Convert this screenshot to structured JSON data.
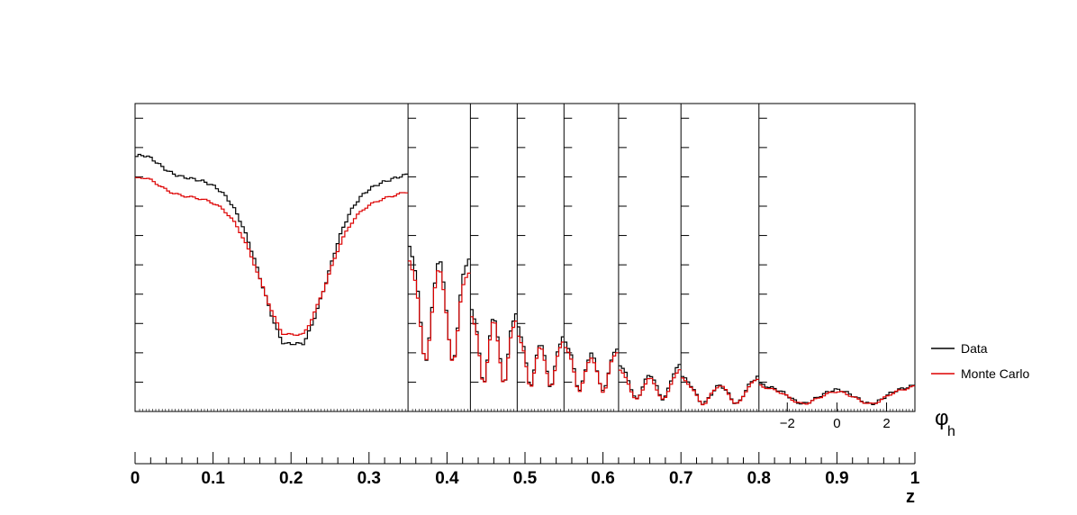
{
  "chart_data": {
    "type": "line",
    "xlabel": "z",
    "inner_xlabel": "φ",
    "inner_xlabel_sub": "h",
    "x_range": [
      0,
      1
    ],
    "x_ticks": [
      "0",
      "0.1",
      "0.2",
      "0.3",
      "0.4",
      "0.5",
      "0.6",
      "0.7",
      "0.8",
      "0.9",
      "1"
    ],
    "phi_range": [
      -3.1416,
      3.1416
    ],
    "phi_ticks": [
      "−2",
      "0",
      "2"
    ],
    "y_range": [
      0,
      1
    ],
    "bin_edges": [
      0,
      0.35,
      0.43,
      0.49,
      0.55,
      0.62,
      0.7,
      0.8,
      1.0
    ],
    "legend": {
      "placement": "right",
      "entries": [
        {
          "label": "Data",
          "color": "#000000"
        },
        {
          "label": "Monte Carlo",
          "color": "#dd0000"
        }
      ]
    },
    "series": [
      {
        "name": "Data",
        "color": "#000000",
        "panels": [
          {
            "left": 0.86,
            "min": 0.22,
            "right": 0.82,
            "mid": 0.68,
            "dip": 0.49,
            "mid_y": 0.66,
            "peak1": 0.92,
            "peak1_x": 0.03
          },
          {
            "left": 0.55,
            "min": 0.1,
            "right": 0.51,
            "mid": 0.42
          },
          {
            "left": 0.34,
            "min": 0.05,
            "right": 0.33,
            "mid": 0.26
          },
          {
            "left": 0.29,
            "min": 0.05,
            "right": 0.25,
            "mid": 0.19
          },
          {
            "left": 0.24,
            "min": 0.04,
            "right": 0.21,
            "mid": 0.16
          },
          {
            "left": 0.16,
            "min": 0.02,
            "right": 0.16,
            "mid": 0.1
          },
          {
            "left": 0.12,
            "min": 0.01,
            "right": 0.12,
            "mid": 0.07
          },
          {
            "left": 0.09,
            "min": 0.015,
            "right": 0.085,
            "mid": 0.06
          }
        ]
      },
      {
        "name": "Monte Carlo",
        "color": "#dd0000",
        "panels": [
          {
            "left": 0.79,
            "min": 0.25,
            "right": 0.76,
            "mid": 0.66,
            "dip": 0.69,
            "mid_y": 0.68,
            "peak1": 0.84,
            "peak1_x": 0.03
          },
          {
            "left": 0.5,
            "min": 0.11,
            "right": 0.46,
            "mid": 0.4
          },
          {
            "left": 0.32,
            "min": 0.05,
            "right": 0.3,
            "mid": 0.25
          },
          {
            "left": 0.26,
            "min": 0.05,
            "right": 0.23,
            "mid": 0.18
          },
          {
            "left": 0.22,
            "min": 0.04,
            "right": 0.2,
            "mid": 0.15
          },
          {
            "left": 0.14,
            "min": 0.02,
            "right": 0.14,
            "mid": 0.09
          },
          {
            "left": 0.11,
            "min": 0.01,
            "right": 0.11,
            "mid": 0.07
          },
          {
            "left": 0.085,
            "min": 0.015,
            "right": 0.082,
            "mid": 0.055
          }
        ]
      }
    ]
  }
}
